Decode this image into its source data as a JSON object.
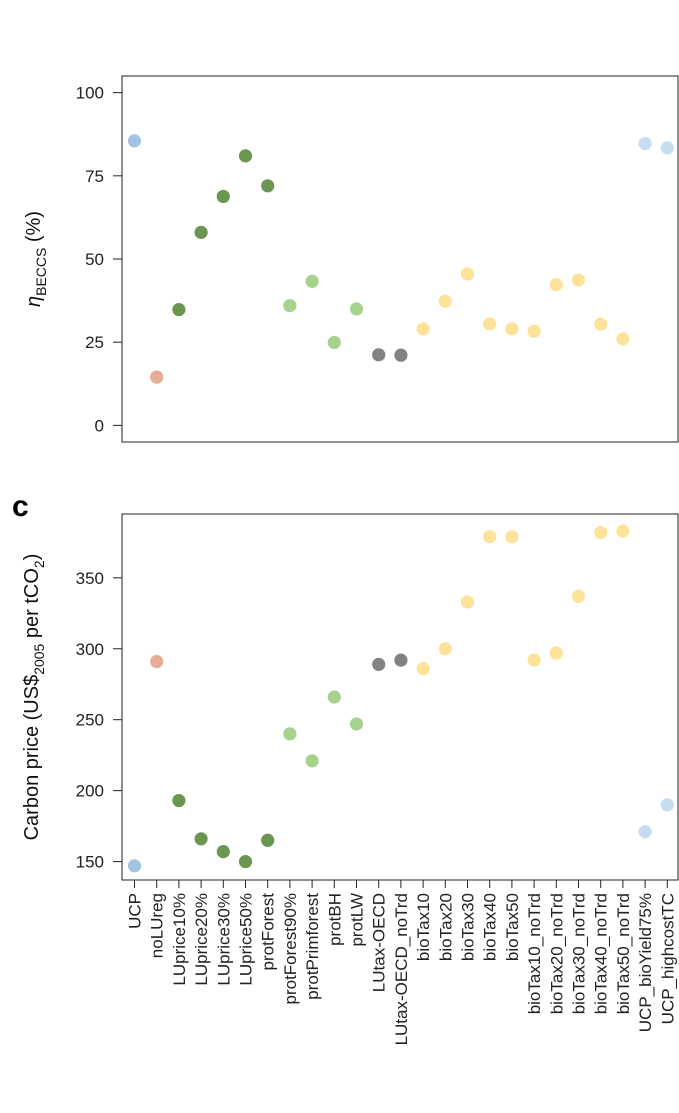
{
  "chart_data": [
    {
      "type": "scatter",
      "panel": "",
      "ylabel": {
        "main": "η",
        "sub": "BECCS",
        "suffix": " (%)"
      },
      "ylim": [
        -5,
        105
      ],
      "yticks": [
        0,
        25,
        50,
        75,
        100
      ],
      "values": [
        85.5,
        14.5,
        34.8,
        58,
        68.8,
        81,
        72,
        36,
        43.3,
        24.9,
        35,
        21.2,
        21.1,
        29,
        37.3,
        45.5,
        30.5,
        29,
        28.3,
        42.3,
        43.7,
        30.4,
        26,
        84.7,
        83.4
      ]
    },
    {
      "type": "scatter",
      "panel": "c",
      "ylabel": {
        "main": "Carbon price (US$",
        "sub": "2005",
        "mid": " per tCO",
        "sub2": "2",
        "suffix": ")"
      },
      "ylim": [
        137,
        395
      ],
      "yticks": [
        150,
        200,
        250,
        300,
        350
      ],
      "values": [
        147,
        291,
        193,
        166,
        157,
        150,
        165,
        240,
        221,
        266,
        247,
        289,
        292,
        286,
        300,
        333,
        379,
        379,
        292,
        297,
        337,
        382,
        383,
        171,
        190
      ]
    }
  ],
  "categories": [
    "UCP",
    "noLUreg",
    "LUprice10%",
    "LUprice20%",
    "LUprice30%",
    "LUprice50%",
    "protForest",
    "protForest90%",
    "protPrimforest",
    "protBH",
    "protLW",
    "LUtax-OECD",
    "LUtax-OECD_noTrd",
    "bioTax10",
    "bioTax20",
    "bioTax30",
    "bioTax40",
    "bioTax50",
    "bioTax10_noTrd",
    "bioTax20_noTrd",
    "bioTax30_noTrd",
    "bioTax40_noTrd",
    "bioTax50_noTrd",
    "UCP_bioYield75%",
    "UCP_highcostTC"
  ],
  "colors": [
    "#a2c4e2",
    "#e4ad94",
    "#6b9651",
    "#6b9651",
    "#6b9651",
    "#6b9651",
    "#6b9651",
    "#a7d28e",
    "#a7d28e",
    "#a7d28e",
    "#a7d28e",
    "#828282",
    "#828282",
    "#fde39a",
    "#fde39a",
    "#fde39a",
    "#fde39a",
    "#fde39a",
    "#fde39a",
    "#fde39a",
    "#fde39a",
    "#fde39a",
    "#fde39a",
    "#c7dcef",
    "#c7dcef"
  ]
}
